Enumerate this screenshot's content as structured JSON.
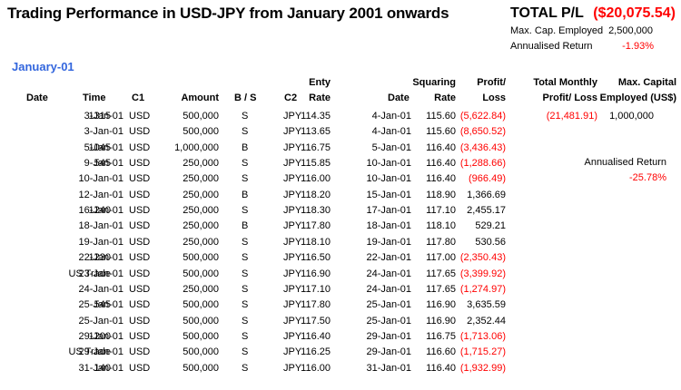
{
  "title": "Trading Performance in USD-JPY from January 2001 onwards",
  "summary": {
    "total_label": "TOTAL P/L",
    "total_value": "($20,075.54)",
    "maxcap_label": "Max. Cap. Employed",
    "maxcap_value": "2,500,000",
    "annual_label": "Annualised Return",
    "annual_value": "-1.93%"
  },
  "month_label": "January-01",
  "headers": {
    "date": "Date",
    "time": "Time",
    "c1": "C1",
    "amount": "Amount",
    "bs": "B / S",
    "c2": "C2",
    "entry_top": "Enty",
    "entry_bottom": "Rate",
    "date2": "Date",
    "squaring_top": "Squaring",
    "squaring_bottom": "Rate",
    "profit_top": "Profit/",
    "profit_bottom": "Loss",
    "tm_top": "Total Monthly",
    "tm_bottom": "Profit/ Loss",
    "mc_top": "Max. Capital",
    "mc_bottom": "Employed (US$)"
  },
  "monthly": {
    "total_pl": "(21,481.91)",
    "max_capital": "1,000,000",
    "annual_label": "Annualised Return",
    "annual_value": "-25.78%"
  },
  "rows": [
    {
      "date": "3-Jan-01",
      "time": "1315",
      "c1": "USD",
      "amount": "500,000",
      "bs": "S",
      "c2": "JPY",
      "entry": "114.35",
      "date2": "4-Jan-01",
      "square": "115.60",
      "pl": "(5,622.84)",
      "neg": true
    },
    {
      "date": "3-Jan-01",
      "time": "",
      "c1": "USD",
      "amount": "500,000",
      "bs": "S",
      "c2": "JPY",
      "entry": "113.65",
      "date2": "4-Jan-01",
      "square": "115.60",
      "pl": "(8,650.52)",
      "neg": true
    },
    {
      "date": "5-Jan-01",
      "time": "1045",
      "c1": "USD",
      "amount": "1,000,000",
      "bs": "B",
      "c2": "JPY",
      "entry": "116.75",
      "date2": "5-Jan-01",
      "square": "116.40",
      "pl": "(3,436.43)",
      "neg": true
    },
    {
      "date": "9-Jan-01",
      "time": "545",
      "c1": "USD",
      "amount": "250,000",
      "bs": "S",
      "c2": "JPY",
      "entry": "115.85",
      "date2": "10-Jan-01",
      "square": "116.40",
      "pl": "(1,288.66)",
      "neg": true
    },
    {
      "date": "10-Jan-01",
      "time": "",
      "c1": "USD",
      "amount": "250,000",
      "bs": "S",
      "c2": "JPY",
      "entry": "116.00",
      "date2": "10-Jan-01",
      "square": "116.40",
      "pl": "(966.49)",
      "neg": true
    },
    {
      "date": "12-Jan-01",
      "time": "",
      "c1": "USD",
      "amount": "250,000",
      "bs": "B",
      "c2": "JPY",
      "entry": "118.20",
      "date2": "15-Jan-01",
      "square": "118.90",
      "pl": "1,366.69",
      "neg": false
    },
    {
      "date": "16-Jan-01",
      "time": "1240",
      "c1": "USD",
      "amount": "250,000",
      "bs": "S",
      "c2": "JPY",
      "entry": "118.30",
      "date2": "17-Jan-01",
      "square": "117.10",
      "pl": "2,455.17",
      "neg": false
    },
    {
      "date": "18-Jan-01",
      "time": "",
      "c1": "USD",
      "amount": "250,000",
      "bs": "B",
      "c2": "JPY",
      "entry": "117.80",
      "date2": "18-Jan-01",
      "square": "118.10",
      "pl": "529.21",
      "neg": false
    },
    {
      "date": "19-Jan-01",
      "time": "",
      "c1": "USD",
      "amount": "250,000",
      "bs": "S",
      "c2": "JPY",
      "entry": "118.10",
      "date2": "19-Jan-01",
      "square": "117.80",
      "pl": "530.56",
      "neg": false
    },
    {
      "date": "22-Jan-01",
      "time": "1230",
      "c1": "USD",
      "amount": "500,000",
      "bs": "S",
      "c2": "JPY",
      "entry": "116.50",
      "date2": "22-Jan-01",
      "square": "117.00",
      "pl": "(2,350.43)",
      "neg": true
    },
    {
      "date": "23-Jan-01",
      "time": "US Trade",
      "c1": "USD",
      "amount": "500,000",
      "bs": "S",
      "c2": "JPY",
      "entry": "116.90",
      "date2": "24-Jan-01",
      "square": "117.65",
      "pl": "(3,399.92)",
      "neg": true
    },
    {
      "date": "24-Jan-01",
      "time": "",
      "c1": "USD",
      "amount": "250,000",
      "bs": "S",
      "c2": "JPY",
      "entry": "117.10",
      "date2": "24-Jan-01",
      "square": "117.65",
      "pl": "(1,274.97)",
      "neg": true
    },
    {
      "date": "25-Jan-01",
      "time": "545",
      "c1": "USD",
      "amount": "500,000",
      "bs": "S",
      "c2": "JPY",
      "entry": "117.80",
      "date2": "25-Jan-01",
      "square": "116.90",
      "pl": "3,635.59",
      "neg": false
    },
    {
      "date": "25-Jan-01",
      "time": "",
      "c1": "USD",
      "amount": "500,000",
      "bs": "S",
      "c2": "JPY",
      "entry": "117.50",
      "date2": "25-Jan-01",
      "square": "116.90",
      "pl": "2,352.44",
      "neg": false
    },
    {
      "date": "29-Jan-01",
      "time": "1200",
      "c1": "USD",
      "amount": "500,000",
      "bs": "S",
      "c2": "JPY",
      "entry": "116.40",
      "date2": "29-Jan-01",
      "square": "116.75",
      "pl": "(1,713.06)",
      "neg": true
    },
    {
      "date": "29-Jan-01",
      "time": "US Trade",
      "c1": "USD",
      "amount": "500,000",
      "bs": "S",
      "c2": "JPY",
      "entry": "116.25",
      "date2": "29-Jan-01",
      "square": "116.60",
      "pl": "(1,715.27)",
      "neg": true
    },
    {
      "date": "31-Jan-01",
      "time": "140",
      "c1": "USD",
      "amount": "500,000",
      "bs": "S",
      "c2": "JPY",
      "entry": "116.00",
      "date2": "31-Jan-01",
      "square": "116.40",
      "pl": "(1,932.99)",
      "neg": true
    }
  ]
}
